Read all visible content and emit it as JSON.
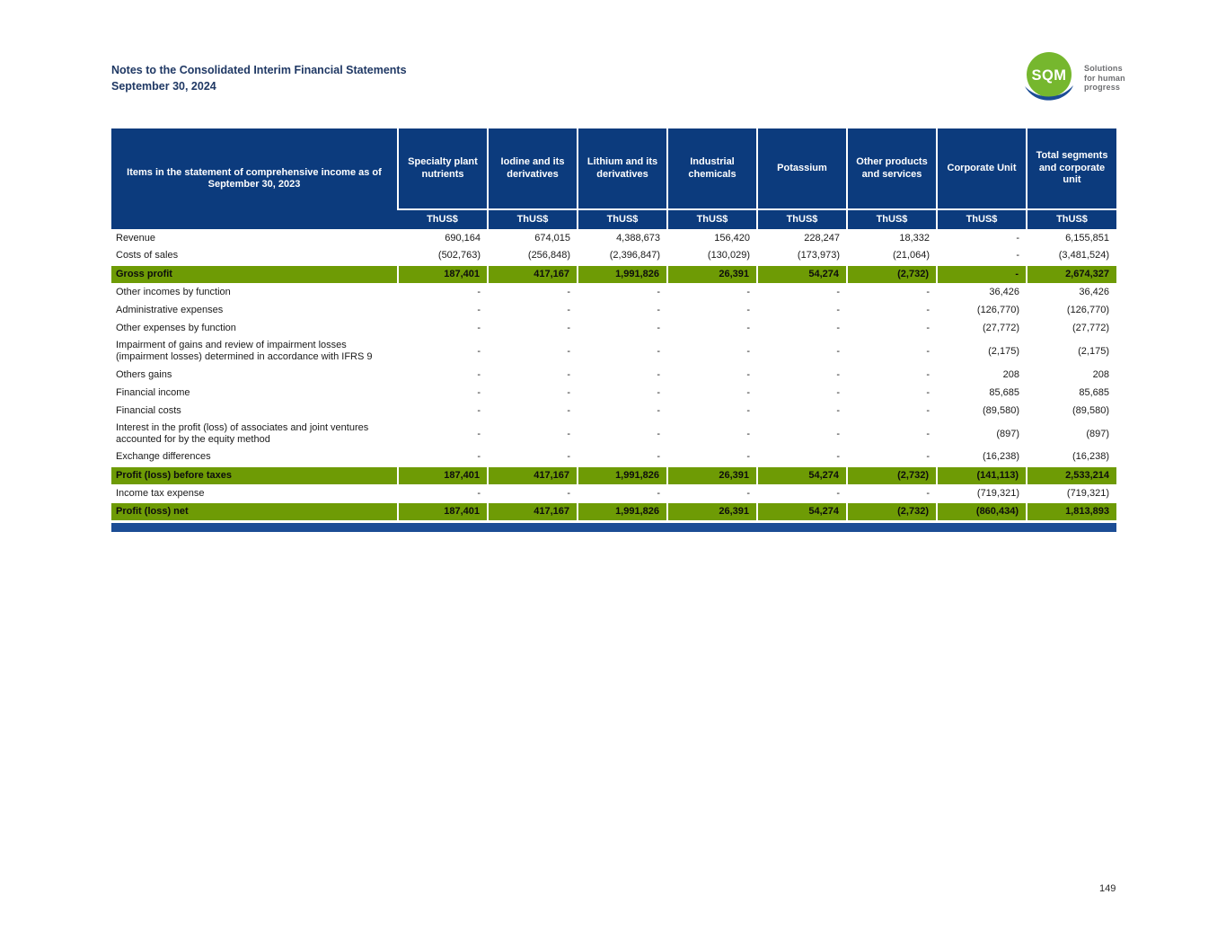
{
  "page": {
    "title_line1": "Notes to the Consolidated Interim Financial Statements",
    "title_line2": "September 30, 2024",
    "page_number": "149"
  },
  "logo": {
    "text": "SQM",
    "tagline_line1": "Solutions",
    "tagline_line2": "for human",
    "tagline_line3": "progress"
  },
  "colors": {
    "header_blue": "#0c3b7d",
    "bottom_bar_blue": "#1c4d95",
    "highlight_green": "#6e9b05",
    "title_blue": "#1f3864",
    "logo_green": "#76b72e"
  },
  "table": {
    "header_col1": "Items in the statement of comprehensive income as of September 30, 2023",
    "unit_label": "ThUS$",
    "columns": [
      "Specialty plant nutrients",
      "Iodine and its derivatives",
      "Lithium and its derivatives",
      "Industrial chemicals",
      "Potassium",
      "Other products and services",
      "Corporate Unit",
      "Total segments and corporate unit"
    ],
    "rows": [
      {
        "label": "Revenue",
        "highlight": false,
        "twoline": false,
        "values": [
          "690,164",
          "674,015",
          "4,388,673",
          "156,420",
          "228,247",
          "18,332",
          "-",
          "6,155,851"
        ]
      },
      {
        "label": "Costs of sales",
        "highlight": false,
        "twoline": false,
        "values": [
          "(502,763)",
          "(256,848)",
          "(2,396,847)",
          "(130,029)",
          "(173,973)",
          "(21,064)",
          "-",
          "(3,481,524)"
        ]
      },
      {
        "label": "Gross profit",
        "highlight": true,
        "twoline": false,
        "values": [
          "187,401",
          "417,167",
          "1,991,826",
          "26,391",
          "54,274",
          "(2,732)",
          "-",
          "2,674,327"
        ]
      },
      {
        "label": "Other incomes by function",
        "highlight": false,
        "twoline": false,
        "values": [
          "-",
          "-",
          "-",
          "-",
          "-",
          "-",
          "36,426",
          "36,426"
        ]
      },
      {
        "label": "Administrative expenses",
        "highlight": false,
        "twoline": false,
        "values": [
          "-",
          "-",
          "-",
          "-",
          "-",
          "-",
          "(126,770)",
          "(126,770)"
        ]
      },
      {
        "label": "Other expenses by function",
        "highlight": false,
        "twoline": false,
        "values": [
          "-",
          "-",
          "-",
          "-",
          "-",
          "-",
          "(27,772)",
          "(27,772)"
        ]
      },
      {
        "label": "Impairment of gains and review of impairment losses (impairment losses) determined in accordance with IFRS 9",
        "highlight": false,
        "twoline": true,
        "values": [
          "-",
          "-",
          "-",
          "-",
          "-",
          "-",
          "(2,175)",
          "(2,175)"
        ]
      },
      {
        "label": "Others gains",
        "highlight": false,
        "twoline": false,
        "values": [
          "-",
          "-",
          "-",
          "-",
          "-",
          "-",
          "208",
          "208"
        ]
      },
      {
        "label": "Financial income",
        "highlight": false,
        "twoline": false,
        "values": [
          "-",
          "-",
          "-",
          "-",
          "-",
          "-",
          "85,685",
          "85,685"
        ]
      },
      {
        "label": "Financial costs",
        "highlight": false,
        "twoline": false,
        "values": [
          "-",
          "-",
          "-",
          "-",
          "-",
          "-",
          "(89,580)",
          "(89,580)"
        ]
      },
      {
        "label": "Interest in the profit (loss) of associates and joint ventures accounted for by the equity method",
        "highlight": false,
        "twoline": true,
        "values": [
          "-",
          "-",
          "-",
          "-",
          "-",
          "-",
          "(897)",
          "(897)"
        ]
      },
      {
        "label": "Exchange differences",
        "highlight": false,
        "twoline": false,
        "values": [
          "-",
          "-",
          "-",
          "-",
          "-",
          "-",
          "(16,238)",
          "(16,238)"
        ]
      },
      {
        "label": "Profit (loss) before taxes",
        "highlight": true,
        "twoline": false,
        "values": [
          "187,401",
          "417,167",
          "1,991,826",
          "26,391",
          "54,274",
          "(2,732)",
          "(141,113)",
          "2,533,214"
        ]
      },
      {
        "label": "Income tax expense",
        "highlight": false,
        "twoline": false,
        "values": [
          "-",
          "-",
          "-",
          "-",
          "-",
          "-",
          "(719,321)",
          "(719,321)"
        ]
      },
      {
        "label": "Profit (loss) net",
        "highlight": true,
        "twoline": false,
        "values": [
          "187,401",
          "417,167",
          "1,991,826",
          "26,391",
          "54,274",
          "(2,732)",
          "(860,434)",
          "1,813,893"
        ]
      }
    ]
  }
}
